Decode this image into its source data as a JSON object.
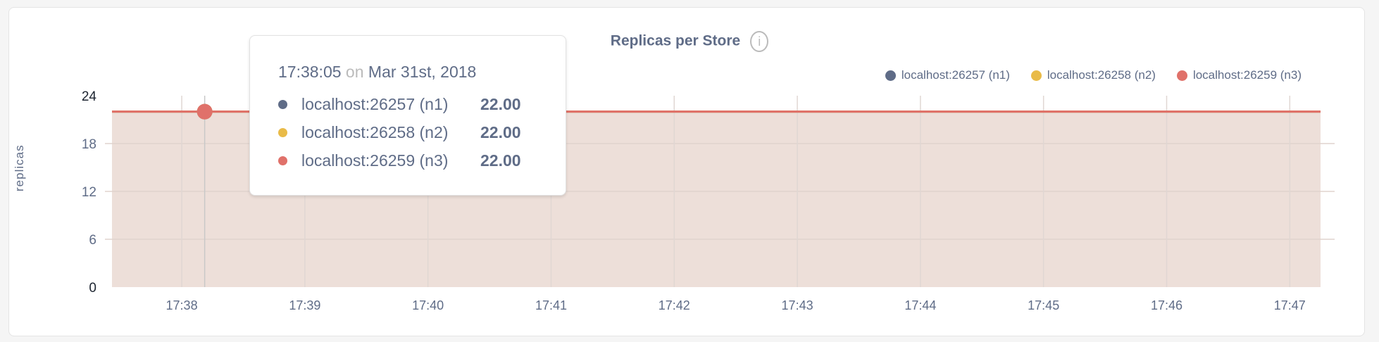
{
  "chart_data": {
    "type": "area",
    "title": "Replicas per Store",
    "ylabel": "replicas",
    "xlabel": "",
    "ylim": [
      0,
      24
    ],
    "yticks": [
      "0",
      "6",
      "12",
      "18",
      "24"
    ],
    "xlim": [
      "17:37:26",
      "17:47:15"
    ],
    "xticks": [
      "17:38",
      "17:39",
      "17:40",
      "17:41",
      "17:42",
      "17:43",
      "17:44",
      "17:45",
      "17:46",
      "17:47"
    ],
    "grid": true,
    "legend_position": "top-right",
    "series": [
      {
        "name": "localhost:26257 (n1)",
        "color": "#5f6c87",
        "x": [
          "17:37:26",
          "17:47:15"
        ],
        "values": [
          22,
          22
        ]
      },
      {
        "name": "localhost:26258 (n2)",
        "color": "#e9bb48",
        "x": [
          "17:37:26",
          "17:47:15"
        ],
        "values": [
          22,
          22
        ]
      },
      {
        "name": "localhost:26259 (n3)",
        "color": "#e0716a",
        "x": [
          "17:37:26",
          "17:47:15"
        ],
        "values": [
          22,
          22
        ]
      }
    ],
    "fill_color": "#eddfd9",
    "tooltip": {
      "time": "17:38:05",
      "on": "on",
      "date": "Mar 31st, 2018",
      "rows": [
        {
          "name": "localhost:26257 (n1)",
          "value": "22.00",
          "color": "#5f6c87"
        },
        {
          "name": "localhost:26258 (n2)",
          "value": "22.00",
          "color": "#e9bb48"
        },
        {
          "name": "localhost:26259 (n3)",
          "value": "22.00",
          "color": "#e0716a"
        }
      ]
    }
  },
  "info_icon": "info-circle-icon",
  "info_glyph": "i"
}
